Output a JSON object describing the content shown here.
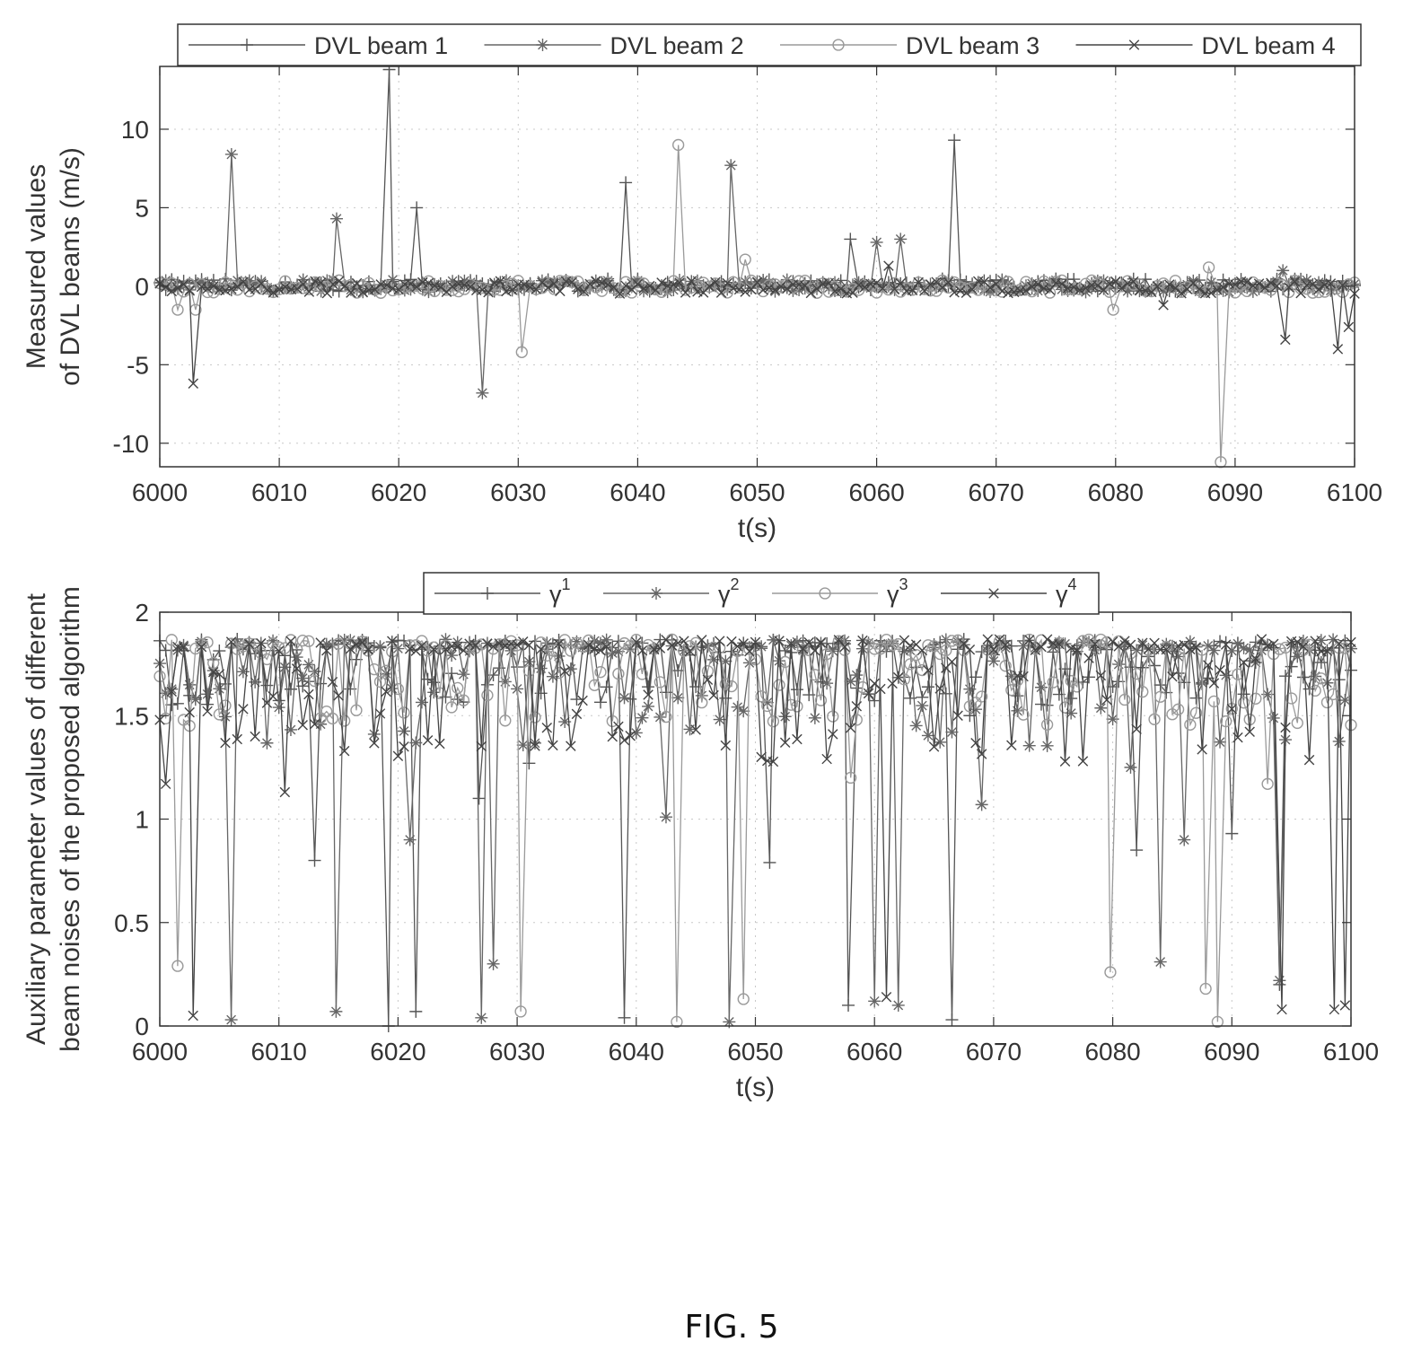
{
  "figure_caption": "FIG. 5",
  "chart_data": [
    {
      "type": "line",
      "xlabel": "t(s)",
      "ylabel_lines": [
        "Measured values",
        "of DVL beams (m/s)"
      ],
      "xlim": [
        6000,
        6100
      ],
      "ylim": [
        -11.5,
        14
      ],
      "xticks": [
        6000,
        6010,
        6020,
        6030,
        6040,
        6050,
        6060,
        6070,
        6080,
        6090,
        6100
      ],
      "yticks": [
        -10,
        -5,
        0,
        5,
        10
      ],
      "grid": "dotted",
      "legend_position": "top",
      "baseline_noise": 0.4,
      "series": [
        {
          "name": "DVL beam 1",
          "marker": "plus",
          "color": "#555555",
          "spikes": [
            [
              6019.2,
              13.8
            ],
            [
              6021.5,
              5.0
            ],
            [
              6039.0,
              6.6
            ],
            [
              6057.8,
              3.0
            ],
            [
              6066.5,
              9.3
            ]
          ]
        },
        {
          "name": "DVL beam 2",
          "marker": "star",
          "color": "#666666",
          "spikes": [
            [
              6006.0,
              8.4
            ],
            [
              6014.8,
              4.3
            ],
            [
              6027.0,
              -6.8
            ],
            [
              6047.8,
              7.7
            ],
            [
              6060.0,
              2.8
            ],
            [
              6062.0,
              3.0
            ],
            [
              6094.0,
              1.0
            ]
          ]
        },
        {
          "name": "DVL beam 3",
          "marker": "circle",
          "color": "#9a9a9a",
          "spikes": [
            [
              6001.5,
              -1.5
            ],
            [
              6003.0,
              -1.5
            ],
            [
              6030.3,
              -4.2
            ],
            [
              6043.4,
              9.0
            ],
            [
              6049.0,
              1.7
            ],
            [
              6079.8,
              -1.5
            ],
            [
              6087.8,
              1.2
            ],
            [
              6088.8,
              -11.2
            ]
          ]
        },
        {
          "name": "DVL beam 4",
          "marker": "x",
          "color": "#444444",
          "spikes": [
            [
              6002.8,
              -6.2
            ],
            [
              6061.0,
              1.3
            ],
            [
              6084.0,
              -1.2
            ],
            [
              6094.2,
              -3.4
            ],
            [
              6098.6,
              -4.0
            ],
            [
              6099.5,
              -2.6
            ]
          ]
        }
      ]
    },
    {
      "type": "line",
      "xlabel": "t(s)",
      "ylabel_lines": [
        "Auxiliary parameter values of different",
        "beam noises of the proposed algorithm"
      ],
      "xlim": [
        6000,
        6100
      ],
      "ylim": [
        0,
        2
      ],
      "xticks": [
        6000,
        6010,
        6020,
        6030,
        6040,
        6050,
        6060,
        6070,
        6080,
        6090,
        6100
      ],
      "yticks": [
        0,
        0.5,
        1,
        1.5,
        2
      ],
      "ytick_labels": [
        "0",
        "0.5",
        "1",
        "1.5",
        "2"
      ],
      "grid": "dotted",
      "legend_position": "top",
      "series": [
        {
          "name": "γ",
          "superscript": "1",
          "marker": "plus",
          "color": "#555555",
          "upper": [
            1.55,
            1.87
          ],
          "dips": [
            [
              6013.0,
              0.8
            ],
            [
              6019.2,
              0.0
            ],
            [
              6021.5,
              0.07
            ],
            [
              6026.8,
              1.1
            ],
            [
              6031.0,
              1.27
            ],
            [
              6039.0,
              0.04
            ],
            [
              6051.2,
              0.79
            ],
            [
              6057.8,
              0.1
            ],
            [
              6066.5,
              0.03
            ],
            [
              6068.0,
              1.5
            ],
            [
              6082.0,
              0.85
            ],
            [
              6090.0,
              0.93
            ],
            [
              6094.0,
              0.2
            ]
          ]
        },
        {
          "name": "γ",
          "superscript": "2",
          "marker": "star",
          "color": "#666666",
          "upper": [
            1.35,
            1.87
          ],
          "dips": [
            [
              6006.0,
              0.03
            ],
            [
              6014.8,
              0.07
            ],
            [
              6021.0,
              0.9
            ],
            [
              6027.0,
              0.04
            ],
            [
              6028.0,
              0.3
            ],
            [
              6042.5,
              1.01
            ],
            [
              6047.8,
              0.02
            ],
            [
              6060.0,
              0.12
            ],
            [
              6062.0,
              0.1
            ],
            [
              6069.0,
              1.07
            ],
            [
              6081.5,
              1.25
            ],
            [
              6084.0,
              0.31
            ],
            [
              6086.0,
              0.9
            ],
            [
              6094.0,
              0.22
            ]
          ]
        },
        {
          "name": "γ",
          "superscript": "3",
          "marker": "circle",
          "color": "#9a9a9a",
          "upper": [
            1.45,
            1.87
          ],
          "dips": [
            [
              6001.5,
              0.29
            ],
            [
              6030.3,
              0.07
            ],
            [
              6043.4,
              0.02
            ],
            [
              6049.0,
              0.13
            ],
            [
              6058.0,
              1.2
            ],
            [
              6079.8,
              0.26
            ],
            [
              6087.8,
              0.18
            ],
            [
              6088.8,
              0.02
            ],
            [
              6093.0,
              1.17
            ]
          ]
        },
        {
          "name": "γ",
          "superscript": "4",
          "marker": "x",
          "color": "#444444",
          "upper": [
            1.25,
            1.87
          ],
          "dips": [
            [
              6000.5,
              1.17
            ],
            [
              6002.8,
              0.05
            ],
            [
              6010.5,
              1.13
            ],
            [
              6061.0,
              0.14
            ],
            [
              6067.0,
              1.5
            ],
            [
              6094.2,
              0.08
            ],
            [
              6098.6,
              0.08
            ],
            [
              6099.5,
              0.1
            ]
          ]
        }
      ]
    }
  ]
}
